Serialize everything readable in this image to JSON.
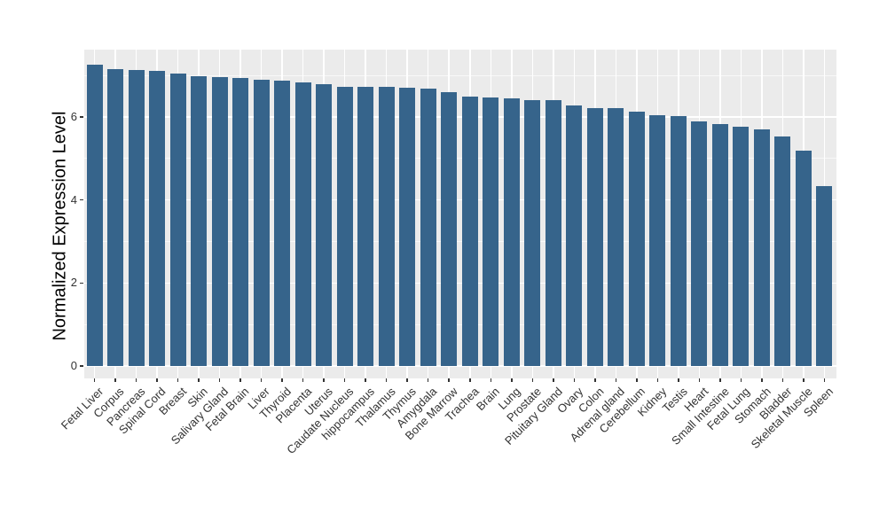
{
  "chart_data": {
    "type": "bar",
    "title": "",
    "xlabel": "",
    "ylabel": "Normalized Expression Level",
    "categories": [
      "Fetal Liver",
      "Corpus",
      "Pancreas",
      "Spinal Cord",
      "Breast",
      "Skin",
      "Salivary Gland",
      "Fetal Brain",
      "Liver",
      "Thyroid",
      "Placenta",
      "Uterus",
      "Caudate Nucleus",
      "hippocampus",
      "Thalamus",
      "Thymus",
      "Amygdala",
      "Bone Marrow",
      "Trachea",
      "Brain",
      "Lung",
      "Prostate",
      "Pituitary Gland",
      "Ovary",
      "Colon",
      "Adrenal gland",
      "Cerebellum",
      "Kidney",
      "Testis",
      "Heart",
      "Small Intestine",
      "Fetal Lung",
      "Stomach",
      "Bladder",
      "Skeletal Muscle",
      "Spleen"
    ],
    "values": [
      7.25,
      7.16,
      7.13,
      7.12,
      7.04,
      6.99,
      6.97,
      6.94,
      6.89,
      6.87,
      6.83,
      6.79,
      6.73,
      6.72,
      6.72,
      6.7,
      6.69,
      6.6,
      6.5,
      6.47,
      6.45,
      6.41,
      6.4,
      6.28,
      6.22,
      6.21,
      6.13,
      6.05,
      6.02,
      5.9,
      5.82,
      5.76,
      5.71,
      5.54,
      5.18,
      4.33
    ],
    "ylim": [
      -0.3,
      7.62
    ],
    "yticks": [
      0,
      2,
      4,
      6
    ],
    "ytick_labels": [
      "0",
      "2",
      "4",
      "6"
    ],
    "yticks_minor": [
      1,
      3,
      5,
      7
    ],
    "x_label_rotation_deg": 45,
    "legend": "none",
    "grid": "white major and minor horizontal lines plus vertical category lines on gray panel",
    "colors": {
      "bar_fill": "#36648B",
      "panel_background": "#EBEBEB",
      "figure_background": "#FFFFFF",
      "gridline": "#FFFFFF",
      "tick_text": "#333333",
      "axis_title_text": "#000000"
    }
  }
}
